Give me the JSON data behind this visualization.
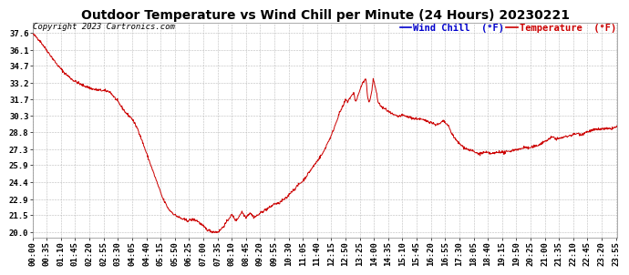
{
  "title": "Outdoor Temperature vs Wind Chill per Minute (24 Hours) 20230221",
  "copyright": "Copyright 2023 Cartronics.com",
  "legend_wind_chill": "Wind Chill  (°F)",
  "legend_temperature": "Temperature  (°F)",
  "line_color": "#cc0000",
  "wind_chill_color": "#0000cc",
  "temperature_color": "#cc0000",
  "background_color": "#ffffff",
  "grid_color": "#bbbbbb",
  "yticks": [
    20.0,
    21.5,
    22.9,
    24.4,
    25.9,
    27.3,
    28.8,
    30.3,
    31.7,
    33.2,
    34.7,
    36.1,
    37.6
  ],
  "ylim": [
    19.5,
    38.5
  ],
  "title_fontsize": 10,
  "tick_fontsize": 6.5,
  "legend_fontsize": 7.5,
  "copyright_fontsize": 6.5,
  "tick_interval": 35
}
